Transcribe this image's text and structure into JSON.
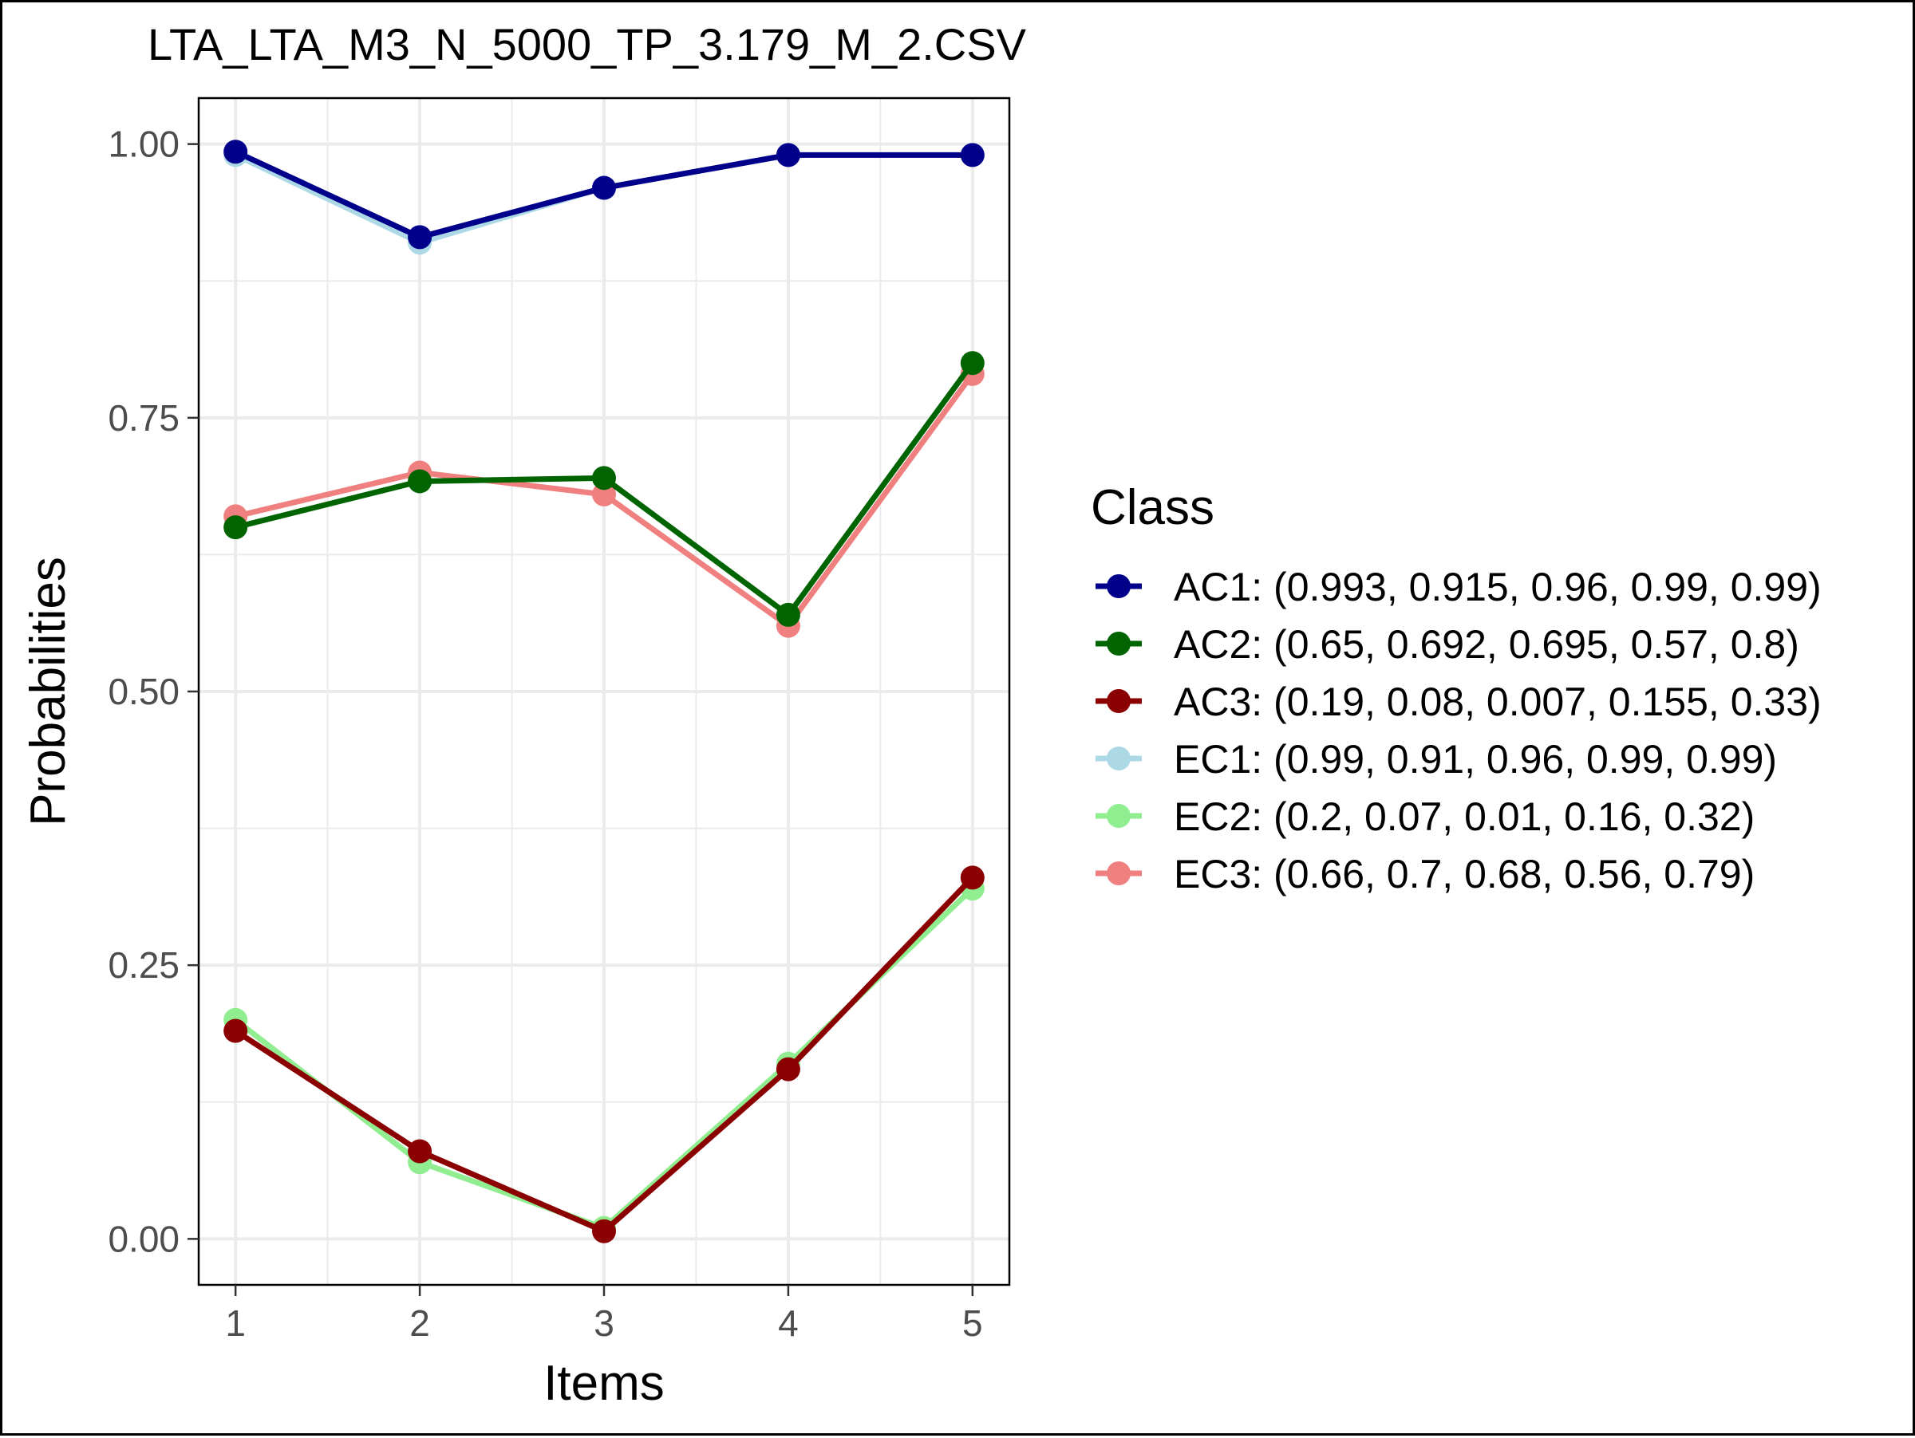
{
  "chart_data": {
    "type": "line",
    "title": "LTA_LTA_M3_N_5000_TP_3.179_M_2.CSV",
    "xlabel": "Items",
    "ylabel": "Probabilities",
    "x": [
      1,
      2,
      3,
      4,
      5
    ],
    "x_tick_labels": [
      "1",
      "2",
      "3",
      "4",
      "5"
    ],
    "xlim": [
      0.8,
      5.2
    ],
    "ylim": [
      -0.042,
      1.042
    ],
    "y_ticks": [
      0,
      0.25,
      0.5,
      0.75,
      1
    ],
    "y_tick_labels": [
      "0.00",
      "0.25",
      "0.50",
      "0.75",
      "1.00"
    ],
    "grid": true,
    "legend": {
      "title": "Class",
      "position": "right",
      "entries": [
        "AC1: (0.993, 0.915, 0.96, 0.99, 0.99)",
        "AC2: (0.65, 0.692, 0.695, 0.57, 0.8)",
        "AC3: (0.19, 0.08, 0.007, 0.155, 0.33)",
        "EC1: (0.99, 0.91, 0.96, 0.99, 0.99)",
        "EC2: (0.2, 0.07, 0.01, 0.16, 0.32)",
        "EC3: (0.66, 0.7, 0.68, 0.56, 0.79)"
      ]
    },
    "series": [
      {
        "name": "AC1",
        "color": "#00008B",
        "values": [
          0.993,
          0.915,
          0.96,
          0.99,
          0.99
        ]
      },
      {
        "name": "AC2",
        "color": "#006400",
        "values": [
          0.65,
          0.692,
          0.695,
          0.57,
          0.8
        ]
      },
      {
        "name": "AC3",
        "color": "#8B0000",
        "values": [
          0.19,
          0.08,
          0.007,
          0.155,
          0.33
        ]
      },
      {
        "name": "EC1",
        "color": "#ADD8E6",
        "values": [
          0.99,
          0.91,
          0.96,
          0.99,
          0.99
        ]
      },
      {
        "name": "EC2",
        "color": "#90EE90",
        "values": [
          0.2,
          0.07,
          0.01,
          0.16,
          0.32
        ]
      },
      {
        "name": "EC3",
        "color": "#F08080",
        "values": [
          0.66,
          0.7,
          0.68,
          0.56,
          0.79
        ]
      }
    ],
    "draw_order": [
      "EC3",
      "EC2",
      "EC1",
      "AC3",
      "AC2",
      "AC1"
    ]
  }
}
